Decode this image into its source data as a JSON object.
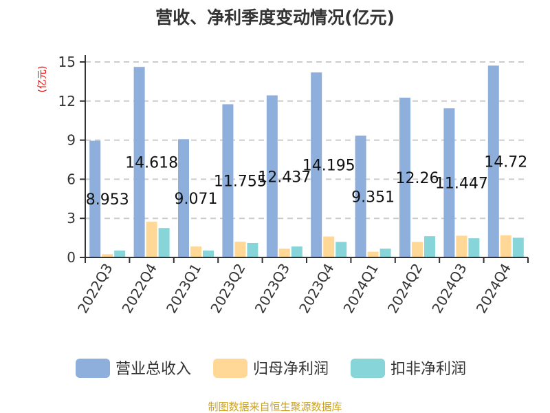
{
  "chart_data": {
    "type": "bar",
    "title": "营收、净利季度变动情况(亿元)",
    "ylabel": "(亿元)",
    "xlabel": "",
    "ylim": [
      0,
      15
    ],
    "yticks": [
      0,
      3,
      6,
      9,
      12,
      15
    ],
    "grid": true,
    "legend_position": "bottom",
    "categories": [
      "2022Q3",
      "2022Q4",
      "2023Q1",
      "2023Q2",
      "2023Q3",
      "2023Q4",
      "2024Q1",
      "2024Q2",
      "2024Q3",
      "2024Q4"
    ],
    "series": [
      {
        "name": "营业总收入",
        "color": "#8eaedb",
        "values": [
          8.953,
          14.618,
          9.071,
          11.755,
          12.437,
          14.195,
          9.351,
          12.26,
          11.447,
          14.72
        ],
        "labels": [
          "8.953",
          "14.618",
          "9.071",
          "11.755",
          "12.437",
          "14.195",
          "9.351",
          "12.26",
          "11.447",
          "14.72"
        ]
      },
      {
        "name": "归母净利润",
        "color": "#ffd898",
        "values": [
          0.25,
          2.74,
          0.84,
          1.21,
          0.67,
          1.61,
          0.44,
          1.19,
          1.67,
          1.7
        ]
      },
      {
        "name": "扣非净利润",
        "color": "#87d5d9",
        "values": [
          0.53,
          2.26,
          0.53,
          1.11,
          0.84,
          1.19,
          0.67,
          1.63,
          1.47,
          1.51
        ]
      }
    ]
  },
  "footer": "制图数据来自恒生聚源数据库"
}
